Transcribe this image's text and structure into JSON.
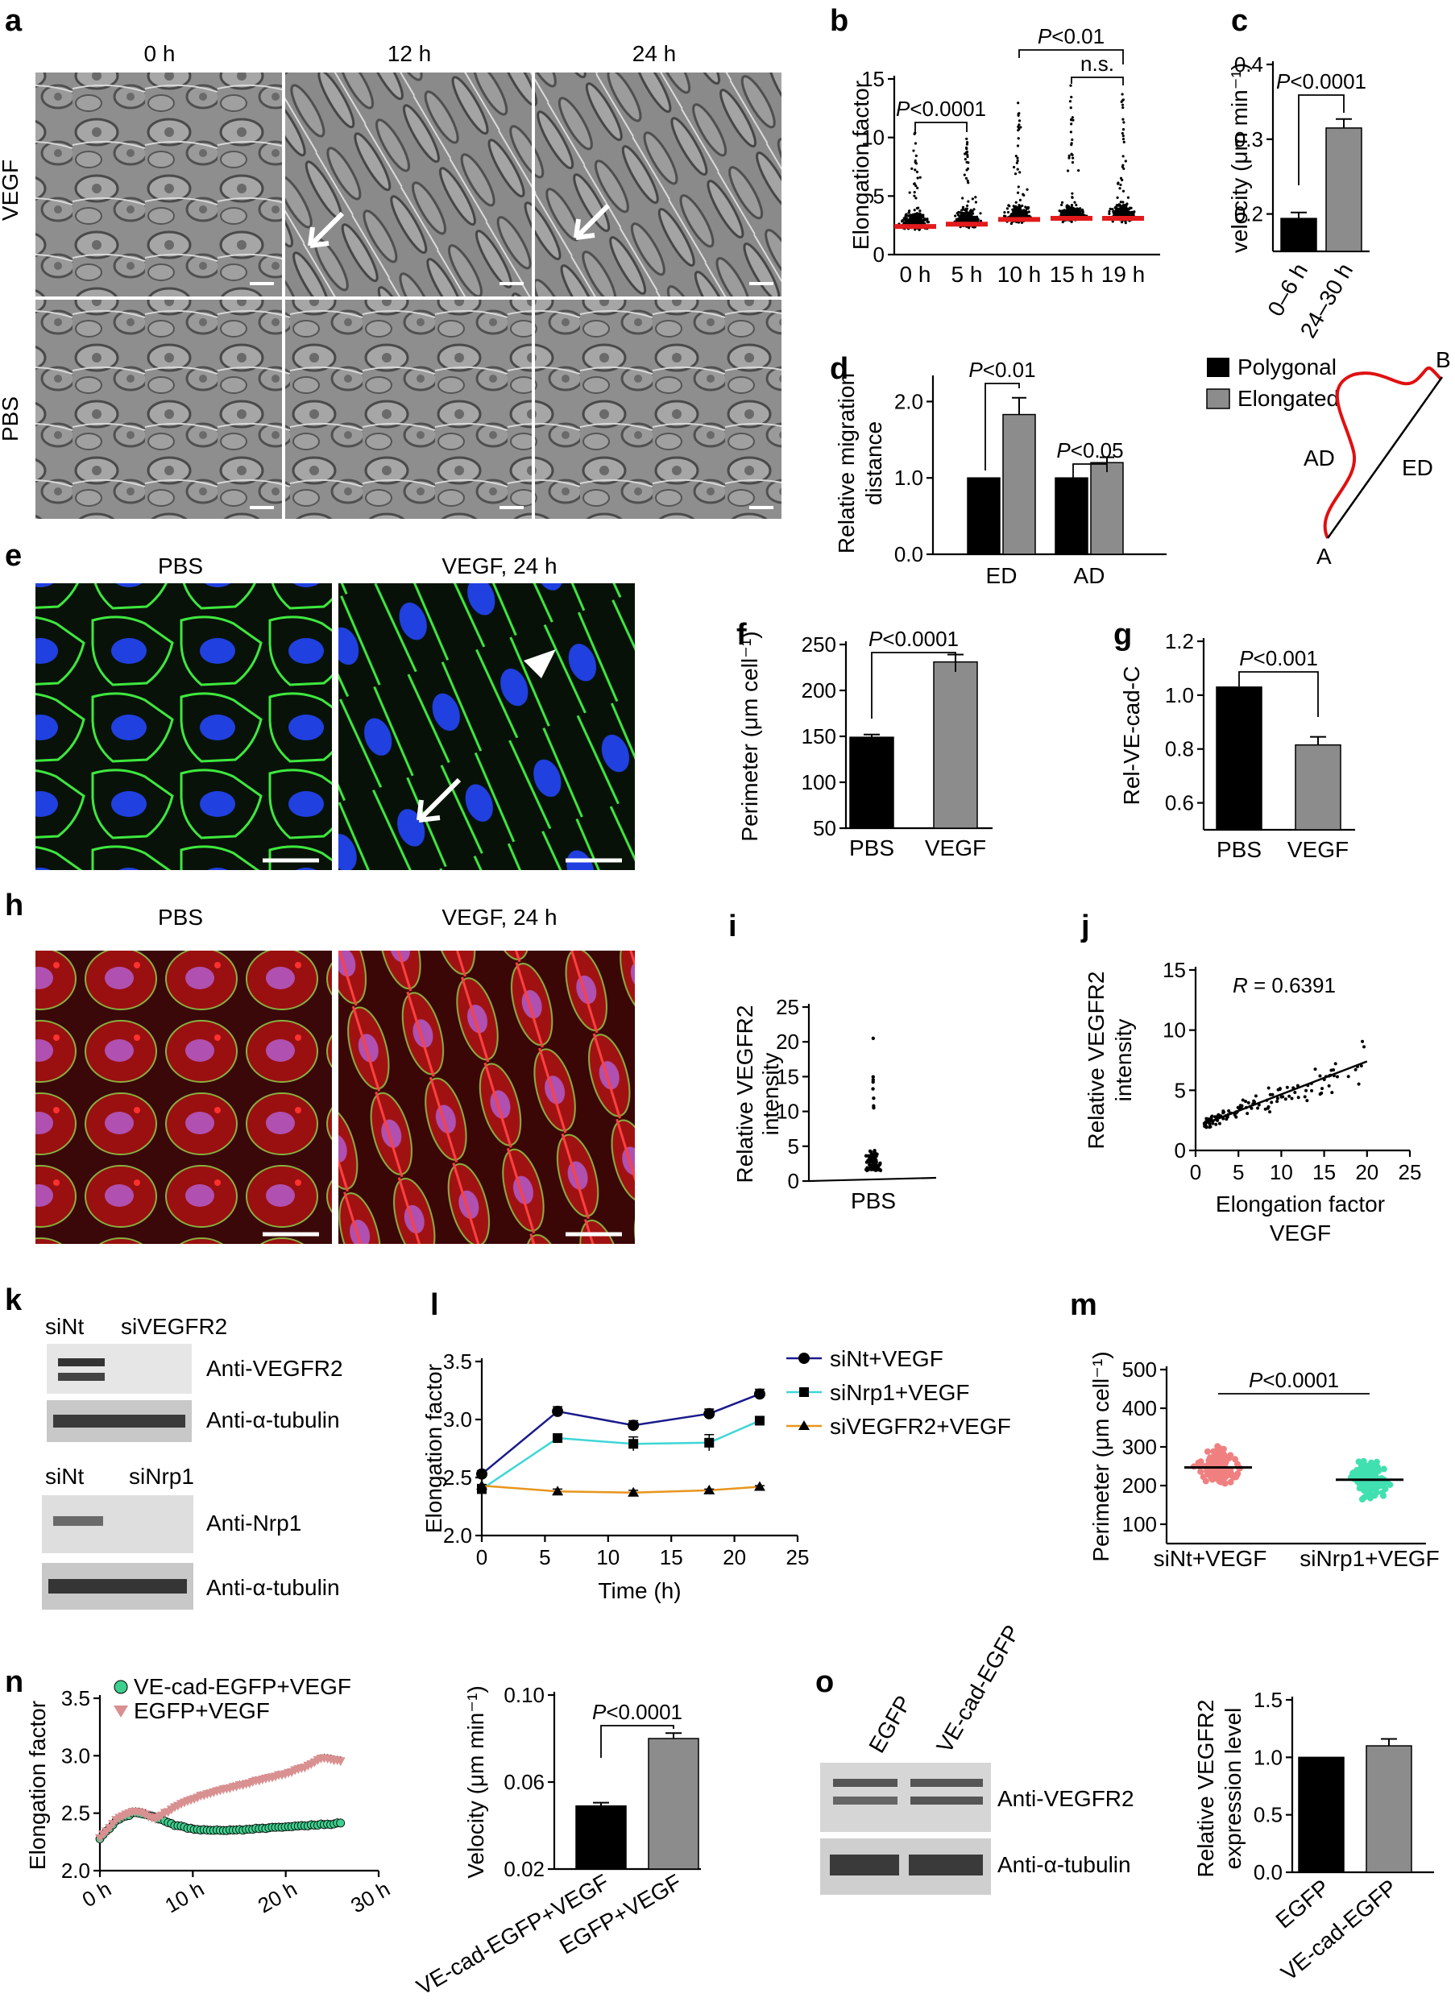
{
  "panel_letters": [
    "a",
    "b",
    "c",
    "d",
    "e",
    "f",
    "g",
    "h",
    "i",
    "j",
    "k",
    "l",
    "m",
    "n",
    "o"
  ],
  "colors": {
    "black_bar": "#000000",
    "grey_bar": "#8c8c8c",
    "red_median": "#e31a1c",
    "series_siNt": "#1a1a8c",
    "series_siNrp1": "#3fd6d6",
    "series_siVEGFR2": "#e8951c",
    "series_vecad": "#3ecf8e",
    "series_egfp": "#d99090",
    "scatter_siNt": "#f08080",
    "scatter_siNrp1": "#40e0b0",
    "membrane_green": "#3ee83e",
    "nucleus_blue": "#2040e0",
    "vegfr2_red": "#e02020"
  },
  "a": {
    "columns": [
      "0 h",
      "12 h",
      "24 h"
    ],
    "rows": [
      "VEGF",
      "PBS"
    ],
    "image": "phase-contrast-micrographs"
  },
  "e": {
    "columns": [
      "PBS",
      "VEGF, 24 h"
    ],
    "image": "immunofluorescence-ve-cadherin-dapi"
  },
  "h": {
    "columns": [
      "PBS",
      "VEGF, 24 h"
    ],
    "image": "immunofluorescence-vegfr2"
  },
  "d_diagram": {
    "labels": [
      "A",
      "B",
      "AD",
      "ED"
    ]
  },
  "k": {
    "blot1": {
      "lanes": [
        "siNt",
        "siVEGFR2"
      ],
      "bands": [
        "Anti-VEGFR2",
        "Anti-α-tubulin"
      ]
    },
    "blot2": {
      "lanes": [
        "siNt",
        "siNrp1"
      ],
      "bands": [
        "Anti-Nrp1",
        "Anti-α-tubulin"
      ]
    }
  },
  "o_blot": {
    "lanes": [
      "EGFP",
      "VE-cad-EGFP"
    ],
    "bands": [
      "Anti-VEGFR2",
      "Anti-α-tubulin"
    ]
  },
  "chart_data": [
    {
      "panel": "b",
      "type": "scatter",
      "categories": [
        "0 h",
        "5 h",
        "10 h",
        "15 h",
        "19 h"
      ],
      "medians": [
        2.4,
        2.6,
        3.0,
        3.1,
        3.1
      ],
      "max_values": [
        10.5,
        10.0,
        13.0,
        14.5,
        14.0
      ],
      "ylabel": "Elongation factor",
      "ylim": [
        0,
        15
      ],
      "yticks": [
        "0",
        "5",
        "10",
        "15"
      ],
      "annotations": [
        "P<0.0001",
        "P<0.01",
        "n.s."
      ]
    },
    {
      "panel": "c",
      "type": "bar",
      "categories": [
        "0–6 h",
        "24–30 h"
      ],
      "values": [
        0.194,
        0.315
      ],
      "errors": [
        0.008,
        0.012
      ],
      "ylabel": "velocity (μm min⁻¹)",
      "ylim": [
        0.15,
        0.4
      ],
      "yticks": [
        "0.2",
        "0.3",
        "0.4"
      ],
      "annotations": [
        "P<0.0001"
      ]
    },
    {
      "panel": "d",
      "type": "bar",
      "categories": [
        "ED",
        "AD"
      ],
      "series": [
        {
          "name": "Polygonal",
          "values": [
            1.0,
            1.0
          ],
          "errors": [
            0,
            0
          ]
        },
        {
          "name": "Elongated",
          "values": [
            1.83,
            1.2
          ],
          "errors": [
            0.22,
            0.07
          ]
        }
      ],
      "ylabel": "Relative migration distance",
      "ylim": [
        0,
        2.3
      ],
      "yticks": [
        "0.0",
        "1.0",
        "2.0"
      ],
      "annotations": [
        "P<0.01",
        "P<0.05"
      ]
    },
    {
      "panel": "f",
      "type": "bar",
      "categories": [
        "PBS",
        "VEGF"
      ],
      "values": [
        149,
        231
      ],
      "errors": [
        3,
        8
      ],
      "ylabel": "Perimeter (μm cell⁻¹)",
      "ylim": [
        50,
        250
      ],
      "yticks": [
        "50",
        "100",
        "150",
        "200",
        "250"
      ],
      "annotations": [
        "P<0.0001"
      ]
    },
    {
      "panel": "g",
      "type": "bar",
      "categories": [
        "PBS",
        "VEGF"
      ],
      "values": [
        1.03,
        0.815
      ],
      "errors": [
        0,
        0.03
      ],
      "ylabel": "Rel-VE-cad-C",
      "ylim": [
        0.5,
        1.2
      ],
      "yticks": [
        "0.6",
        "0.8",
        "1.0",
        "1.2"
      ],
      "annotations": [
        "P<0.001"
      ]
    },
    {
      "panel": "i",
      "type": "scatter",
      "categories": [
        "PBS"
      ],
      "max_value": 20.5,
      "ylabel": "Relative VEGFR2 intensity",
      "ylim": [
        0,
        25
      ],
      "yticks": [
        "0",
        "5",
        "10",
        "15",
        "20",
        "25"
      ]
    },
    {
      "panel": "j",
      "type": "scatter",
      "fit_line": {
        "x": [
          1,
          20
        ],
        "y": [
          2.2,
          7.4
        ]
      },
      "xlabel": "Elongation factor",
      "xlabel2": "VEGF",
      "ylabel": "Relative VEGFR2 intensity",
      "xlim": [
        0,
        25
      ],
      "ylim": [
        0,
        15
      ],
      "xticks": [
        "0",
        "5",
        "10",
        "15",
        "20",
        "25"
      ],
      "yticks": [
        "0",
        "5",
        "10",
        "15"
      ],
      "annotations": [
        "R = 0.6391"
      ]
    },
    {
      "panel": "l",
      "type": "line",
      "x": [
        0,
        6,
        12,
        18,
        22
      ],
      "series": [
        {
          "name": "siNt+VEGF",
          "values": [
            2.53,
            3.07,
            2.95,
            3.05,
            3.22
          ],
          "errors": [
            0.03,
            0.04,
            0.04,
            0.04,
            0.04
          ]
        },
        {
          "name": "siNrp1+VEGF",
          "values": [
            2.4,
            2.84,
            2.79,
            2.8,
            2.99
          ],
          "errors": [
            0.02,
            0.03,
            0.06,
            0.07,
            0.03
          ]
        },
        {
          "name": "siVEGFR2+VEGF",
          "values": [
            2.43,
            2.38,
            2.37,
            2.39,
            2.42
          ],
          "errors": [
            0.01,
            0.02,
            0.02,
            0.01,
            0.01
          ]
        }
      ],
      "xlabel": "Time (h)",
      "ylabel": "Elongation factor",
      "xlim": [
        0,
        25
      ],
      "ylim": [
        2.0,
        3.5
      ],
      "xticks": [
        "0",
        "5",
        "10",
        "15",
        "20",
        "25"
      ],
      "yticks": [
        "2.0",
        "2.5",
        "3.0",
        "3.5"
      ]
    },
    {
      "panel": "m",
      "type": "scatter",
      "categories": [
        "siNt+VEGF",
        "siNrp1+VEGF"
      ],
      "means": [
        247,
        215
      ],
      "ylabel": "Perimeter (μm cell⁻¹)",
      "ylim": [
        50,
        500
      ],
      "yticks": [
        "100",
        "200",
        "300",
        "400",
        "500"
      ],
      "annotations": [
        "P<0.0001"
      ]
    },
    {
      "panel": "n_line",
      "type": "line",
      "series": [
        {
          "name": "VE-cad-EGFP+VEGF",
          "x": [
            0,
            2,
            4,
            6,
            8,
            10,
            12,
            14,
            16,
            18,
            20,
            22,
            24,
            26
          ],
          "values": [
            2.28,
            2.45,
            2.51,
            2.46,
            2.4,
            2.36,
            2.35,
            2.35,
            2.36,
            2.37,
            2.38,
            2.39,
            2.4,
            2.41
          ]
        },
        {
          "name": "EGFP+VEGF",
          "x": [
            0,
            2,
            4,
            6,
            8,
            10,
            12,
            14,
            16,
            18,
            20,
            22,
            24,
            26
          ],
          "values": [
            2.28,
            2.46,
            2.52,
            2.45,
            2.55,
            2.62,
            2.68,
            2.72,
            2.76,
            2.8,
            2.84,
            2.9,
            2.98,
            2.95
          ]
        }
      ],
      "ylabel": "Elongation factor",
      "xlim": [
        0,
        30
      ],
      "ylim": [
        2.0,
        3.5
      ],
      "xticks": [
        "0 h",
        "10 h",
        "20 h",
        "30 h"
      ],
      "yticks": [
        "2.0",
        "2.5",
        "3.0",
        "3.5"
      ]
    },
    {
      "panel": "n_bar",
      "type": "bar",
      "categories": [
        "VE-cad-EGFP+VEGF",
        "EGFP+VEGF"
      ],
      "values": [
        0.049,
        0.08
      ],
      "errors": [
        0.0015,
        0.0025
      ],
      "ylabel": "Velocity (μm min⁻¹)",
      "ylim": [
        0.02,
        0.1
      ],
      "yticks": [
        "0.02",
        "0.06",
        "0.10"
      ],
      "annotations": [
        "P<0.0001"
      ]
    },
    {
      "panel": "o_bar",
      "type": "bar",
      "categories": [
        "EGFP",
        "VE-cad-EGFP"
      ],
      "values": [
        1.0,
        1.1
      ],
      "errors": [
        0,
        0.06
      ],
      "ylabel": "Relative VEGFR2 expression level",
      "ylim": [
        0,
        1.5
      ],
      "yticks": [
        "0.0",
        "0.5",
        "1.0",
        "1.5"
      ]
    }
  ]
}
